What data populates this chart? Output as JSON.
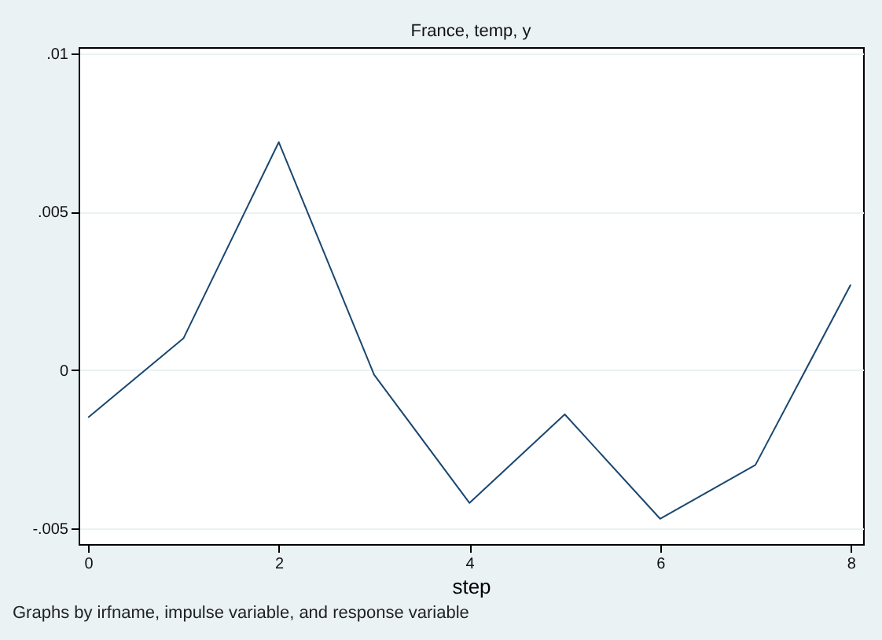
{
  "chart_data": {
    "type": "line",
    "title": "France, temp, y",
    "xlabel": "step",
    "annotations": [
      "Graphs by irfname, impulse variable, and response variable"
    ],
    "x": [
      0,
      1,
      2,
      3,
      4,
      5,
      6,
      7,
      8
    ],
    "series": [
      {
        "color": "#1a476f",
        "values": [
          -0.0015,
          0.001,
          0.0072,
          -0.00015,
          -0.0042,
          -0.0014,
          -0.0047,
          -0.003,
          0.0027
        ]
      }
    ],
    "xlim": [
      -0.1,
      8.13
    ],
    "xticks": [
      0,
      2,
      4,
      6,
      8
    ],
    "ylim": [
      -0.0055,
      0.0102
    ],
    "yticks": [
      {
        "value": -0.005,
        "label": "-.005"
      },
      {
        "value": 0,
        "label": "0"
      },
      {
        "value": 0.005,
        "label": ".005"
      },
      {
        "value": 0.01,
        "label": ".01"
      }
    ],
    "grid": "y",
    "legend": false,
    "marker": "none",
    "line_style": "solid"
  }
}
